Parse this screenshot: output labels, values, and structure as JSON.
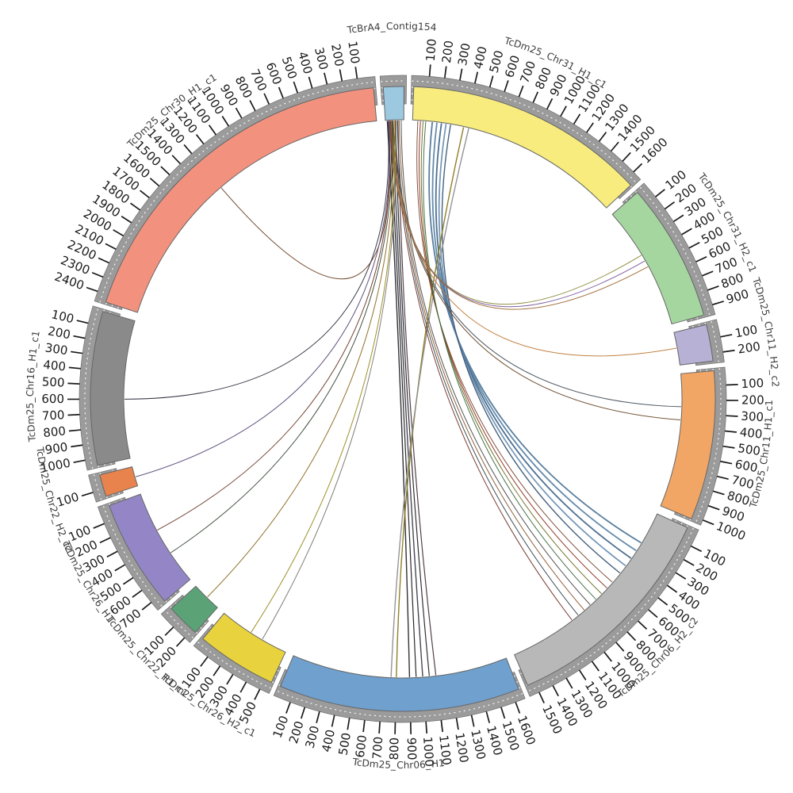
{
  "chart_data": {
    "type": "circos-chord",
    "description_labels": {
      "top_segment": "TcBrA4_Contig154",
      "tick_interval": 100
    },
    "segments": [
      {
        "name": "TcBrA4_Contig154",
        "color": "#9CC8E0",
        "length": 140,
        "reversed": false,
        "show_ticks": false
      },
      {
        "name": "TcDm25_Chr31_H1_c1",
        "color": "#F7EC7D",
        "length": 1650,
        "reversed": false,
        "show_ticks": true
      },
      {
        "name": "TcDm25_Chr31_H2_c1",
        "color": "#A5D6A0",
        "length": 950,
        "reversed": false,
        "show_ticks": true
      },
      {
        "name": "TcDm25_Chr11_H2_c2",
        "color": "#B7B1D6",
        "length": 250,
        "reversed": false,
        "show_ticks": true
      },
      {
        "name": "TcDm25_Chr11_H1_c1",
        "color": "#F2A665",
        "length": 1020,
        "reversed": false,
        "show_ticks": true
      },
      {
        "name": "TcDm25_Chr06_H2_c2",
        "color": "#B8B8B8",
        "length": 1550,
        "reversed": false,
        "show_ticks": true
      },
      {
        "name": "TcDm25_Chr06_H1",
        "color": "#6FA0CE",
        "length": 1650,
        "reversed": true,
        "show_ticks": true
      },
      {
        "name": "TcDm25_Chr26_H2_c1",
        "color": "#E8D33F",
        "length": 550,
        "reversed": true,
        "show_ticks": true
      },
      {
        "name": "TcDm25_Chr22_H1_c1",
        "color": "#5BA377",
        "length": 230,
        "reversed": true,
        "show_ticks": true
      },
      {
        "name": "TcDm25_Chr26_H1",
        "color": "#9486C6",
        "length": 750,
        "reversed": true,
        "show_ticks": true
      },
      {
        "name": "TcDm25_Chr22_H2_c2",
        "color": "#E8834E",
        "length": 150,
        "reversed": true,
        "show_ticks": true
      },
      {
        "name": "TcDm25_Chr16_H1_c1",
        "color": "#8A8A8A",
        "length": 1050,
        "reversed": true,
        "show_ticks": true
      },
      {
        "name": "TcDm25_Chr30_H1_c1",
        "color": "#F2927E",
        "length": 2450,
        "reversed": true,
        "show_ticks": true
      }
    ],
    "links": [
      {
        "from": [
          "TcBrA4_Contig154",
          15
        ],
        "to": [
          "TcDm25_Chr06_H1",
          900
        ],
        "color": "#26262e",
        "w": 1.4
      },
      {
        "from": [
          "TcBrA4_Contig154",
          35
        ],
        "to": [
          "TcDm25_Chr06_H1",
          950
        ],
        "color": "#1f1f1f",
        "w": 1.2
      },
      {
        "from": [
          "TcBrA4_Contig154",
          55
        ],
        "to": [
          "TcDm25_Chr06_H1",
          1000
        ],
        "color": "#3d3d4d",
        "w": 1.4
      },
      {
        "from": [
          "TcBrA4_Contig154",
          75
        ],
        "to": [
          "TcDm25_Chr06_H1",
          1050
        ],
        "color": "#262626",
        "w": 1.2
      },
      {
        "from": [
          "TcBrA4_Contig154",
          95
        ],
        "to": [
          "TcDm25_Chr06_H1",
          1100
        ],
        "color": "#4a3440",
        "w": 1.2
      },
      {
        "from": [
          "TcDm25_Chr31_H1_c1",
          150
        ],
        "to": [
          "TcDm25_Chr06_H2_c2",
          250
        ],
        "color": "#4f7799",
        "w": 1.8
      },
      {
        "from": [
          "TcDm25_Chr31_H1_c1",
          185
        ],
        "to": [
          "TcDm25_Chr06_H2_c2",
          320
        ],
        "color": "#5d85a8",
        "w": 1.8
      },
      {
        "from": [
          "TcDm25_Chr31_H1_c1",
          220
        ],
        "to": [
          "TcDm25_Chr06_H2_c2",
          390
        ],
        "color": "#46688a",
        "w": 1.8
      },
      {
        "from": [
          "TcDm25_Chr31_H1_c1",
          255
        ],
        "to": [
          "TcDm25_Chr06_H2_c2",
          460
        ],
        "color": "#6f94b5",
        "w": 1.8
      },
      {
        "from": [
          "TcDm25_Chr31_H1_c1",
          290
        ],
        "to": [
          "TcDm25_Chr06_H2_c2",
          530
        ],
        "color": "#3c5a77",
        "w": 1.4
      },
      {
        "from": [
          "TcDm25_Chr31_H1_c1",
          390
        ],
        "to": [
          "TcDm25_Chr06_H1",
          800
        ],
        "color": "#8a7a1e",
        "w": 1.4
      },
      {
        "from": [
          "TcDm25_Chr31_H1_c1",
          430
        ],
        "to": [
          "TcDm25_Chr06_H1",
          760
        ],
        "color": "#8f8f8f",
        "w": 1.4
      },
      {
        "from": [
          "TcDm25_Chr31_H1_c1",
          40
        ],
        "to": [
          "TcDm25_Chr06_H2_c2",
          620
        ],
        "color": "#7a4a35",
        "w": 1
      },
      {
        "from": [
          "TcDm25_Chr31_H1_c1",
          60
        ],
        "to": [
          "TcDm25_Chr06_H2_c2",
          680
        ],
        "color": "#8a2e20",
        "w": 1
      },
      {
        "from": [
          "TcDm25_Chr31_H1_c1",
          80
        ],
        "to": [
          "TcDm25_Chr06_H2_c2",
          740
        ],
        "color": "#6e6e23",
        "w": 1
      },
      {
        "from": [
          "TcDm25_Chr31_H1_c1",
          100
        ],
        "to": [
          "TcDm25_Chr06_H2_c2",
          800
        ],
        "color": "#3e6b45",
        "w": 1
      },
      {
        "from": [
          "TcBrA4_Contig154",
          120
        ],
        "to": [
          "TcDm25_Chr06_H2_c2",
          860
        ],
        "color": "#4a4a4a",
        "w": 1
      },
      {
        "from": [
          "TcBrA4_Contig154",
          105
        ],
        "to": [
          "TcDm25_Chr06_H2_c2",
          920
        ],
        "color": "#8a5a30",
        "w": 1
      },
      {
        "from": [
          "TcBrA4_Contig154",
          90
        ],
        "to": [
          "TcDm25_Chr06_H2_c2",
          980
        ],
        "color": "#37474f",
        "w": 1
      },
      {
        "from": [
          "TcBrA4_Contig154",
          75
        ],
        "to": [
          "TcDm25_Chr06_H2_c2",
          1040
        ],
        "color": "#74342a",
        "w": 1
      },
      {
        "from": [
          "TcBrA4_Contig154",
          60
        ],
        "to": [
          "TcDm25_Chr11_H1_c1",
          250
        ],
        "color": "#44505a",
        "w": 1
      },
      {
        "from": [
          "TcBrA4_Contig154",
          50
        ],
        "to": [
          "TcDm25_Chr11_H1_c1",
          350
        ],
        "color": "#6a4a2a",
        "w": 1
      },
      {
        "from": [
          "TcBrA4_Contig154",
          45
        ],
        "to": [
          "TcDm25_Chr11_H2_c2",
          120
        ],
        "color": "#c07a3a",
        "w": 1
      },
      {
        "from": [
          "TcBrA4_Contig154",
          40
        ],
        "to": [
          "TcDm25_Chr31_H2_c1",
          380
        ],
        "color": "#8a8a3a",
        "w": 1
      },
      {
        "from": [
          "TcBrA4_Contig154",
          35
        ],
        "to": [
          "TcDm25_Chr31_H2_c1",
          430
        ],
        "color": "#7a5a9a",
        "w": 1
      },
      {
        "from": [
          "TcBrA4_Contig154",
          30
        ],
        "to": [
          "TcDm25_Chr31_H2_c1",
          480
        ],
        "color": "#a06a35",
        "w": 1
      },
      {
        "from": [
          "TcBrA4_Contig154",
          25
        ],
        "to": [
          "TcDm25_Chr30_H1_c1",
          1300
        ],
        "color": "#6b4226",
        "w": 1
      },
      {
        "from": [
          "TcBrA4_Contig154",
          20
        ],
        "to": [
          "TcDm25_Chr16_H1_c1",
          600
        ],
        "color": "#2f2f3f",
        "w": 1
      },
      {
        "from": [
          "TcBrA4_Contig154",
          30
        ],
        "to": [
          "TcDm25_Chr22_H2_c2",
          80
        ],
        "color": "#5a4a7a",
        "w": 1
      },
      {
        "from": [
          "TcBrA4_Contig154",
          40
        ],
        "to": [
          "TcDm25_Chr26_H1",
          300
        ],
        "color": "#6b3a2a",
        "w": 1
      },
      {
        "from": [
          "TcBrA4_Contig154",
          50
        ],
        "to": [
          "TcDm25_Chr26_H1",
          500
        ],
        "color": "#3a4a3a",
        "w": 1
      },
      {
        "from": [
          "TcBrA4_Contig154",
          60
        ],
        "to": [
          "TcDm25_Chr22_H1_c1",
          120
        ],
        "color": "#8a6a20",
        "w": 1
      },
      {
        "from": [
          "TcBrA4_Contig154",
          70
        ],
        "to": [
          "TcDm25_Chr26_H2_c1",
          250
        ],
        "color": "#9a8a20",
        "w": 1
      },
      {
        "from": [
          "TcBrA4_Contig154",
          80
        ],
        "to": [
          "TcDm25_Chr26_H2_c1",
          350
        ],
        "color": "#77756e",
        "w": 1
      }
    ],
    "style_colors": {
      "scale_band": "#9b9b9b",
      "scale_band_border": "#6e6e6e",
      "tick": "#1a1a1a",
      "tick_label": "#1a1a1a",
      "segment_label": "#3c3c3c",
      "segment_border": "#666666",
      "background": "#ffffff"
    }
  }
}
